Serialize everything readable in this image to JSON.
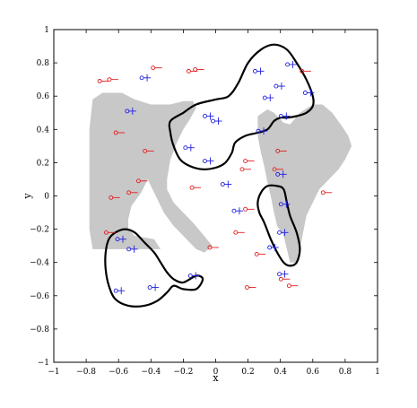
{
  "chart_data": {
    "type": "scatter",
    "title": "",
    "xlabel": "x",
    "ylabel": "y",
    "xlim": [
      -1,
      1
    ],
    "ylim": [
      -1,
      1
    ],
    "xticks": [
      -1,
      -0.8,
      -0.6,
      -0.4,
      -0.2,
      0,
      0.2,
      0.4,
      0.6,
      0.8,
      1
    ],
    "yticks": [
      -1,
      -0.8,
      -0.6,
      -0.4,
      -0.2,
      0,
      0.2,
      0.4,
      0.6,
      0.8,
      1
    ],
    "xtick_labels": [
      "−1",
      "−0.8",
      "−0.6",
      "−0.4",
      "−0.2",
      "0",
      "0.2",
      "0.4",
      "0.6",
      "0.8",
      "1"
    ],
    "ytick_labels": [
      "−1",
      "−0.8",
      "−0.6",
      "−0.4",
      "−0.2",
      "0",
      "0.2",
      "0.4",
      "0.6",
      "0.8",
      "1"
    ],
    "grid": false,
    "colors": {
      "region": "#c8c8c8",
      "boundary": "#000000",
      "class_a": "#e02020",
      "class_b": "#2020e0"
    },
    "region_polygons": [
      [
        [
          -0.76,
          0.58
        ],
        [
          -0.7,
          0.62
        ],
        [
          -0.58,
          0.62
        ],
        [
          -0.5,
          0.58
        ],
        [
          -0.4,
          0.55
        ],
        [
          -0.28,
          0.55
        ],
        [
          -0.2,
          0.57
        ],
        [
          -0.14,
          0.57
        ],
        [
          -0.12,
          0.53
        ],
        [
          -0.16,
          0.46
        ],
        [
          -0.2,
          0.4
        ],
        [
          -0.24,
          0.32
        ],
        [
          -0.28,
          0.22
        ],
        [
          -0.3,
          0.1
        ],
        [
          -0.3,
          0.04
        ],
        [
          -0.26,
          -0.04
        ],
        [
          -0.2,
          -0.1
        ],
        [
          -0.14,
          -0.16
        ],
        [
          -0.08,
          -0.23
        ],
        [
          -0.02,
          -0.3
        ],
        [
          -0.07,
          -0.34
        ],
        [
          -0.12,
          -0.32
        ],
        [
          -0.18,
          -0.26
        ],
        [
          -0.26,
          -0.18
        ],
        [
          -0.32,
          -0.1
        ],
        [
          -0.36,
          -0.02
        ],
        [
          -0.4,
          0.06
        ],
        [
          -0.44,
          0.14
        ],
        [
          -0.5,
          0.2
        ],
        [
          -0.56,
          0.28
        ],
        [
          -0.56,
          0.38
        ],
        [
          -0.52,
          0.41
        ],
        [
          -0.46,
          0.41
        ],
        [
          -0.42,
          0.38
        ],
        [
          -0.38,
          0.36
        ],
        [
          -0.3,
          0.36
        ],
        [
          -0.28,
          0.3
        ],
        [
          -0.3,
          0.22
        ],
        [
          -0.36,
          0.16
        ],
        [
          -0.42,
          0.1
        ],
        [
          -0.46,
          0.02
        ],
        [
          -0.52,
          -0.06
        ],
        [
          -0.54,
          -0.14
        ],
        [
          -0.54,
          -0.2
        ],
        [
          -0.5,
          -0.24
        ],
        [
          -0.38,
          -0.26
        ],
        [
          -0.34,
          -0.32
        ],
        [
          -0.76,
          -0.32
        ],
        [
          -0.78,
          -0.2
        ],
        [
          -0.78,
          0.4
        ]
      ],
      [
        [
          0.26,
          0.48
        ],
        [
          0.32,
          0.52
        ],
        [
          0.36,
          0.5
        ],
        [
          0.42,
          0.44
        ],
        [
          0.46,
          0.43
        ],
        [
          0.52,
          0.5
        ],
        [
          0.6,
          0.55
        ],
        [
          0.66,
          0.55
        ],
        [
          0.72,
          0.5
        ],
        [
          0.78,
          0.42
        ],
        [
          0.82,
          0.36
        ],
        [
          0.84,
          0.3
        ],
        [
          0.8,
          0.22
        ],
        [
          0.76,
          0.16
        ],
        [
          0.7,
          0.1
        ],
        [
          0.64,
          0.04
        ],
        [
          0.6,
          -0.04
        ],
        [
          0.56,
          -0.12
        ],
        [
          0.54,
          -0.22
        ],
        [
          0.52,
          -0.32
        ],
        [
          0.5,
          -0.4
        ],
        [
          0.46,
          -0.4
        ],
        [
          0.44,
          -0.32
        ],
        [
          0.42,
          -0.24
        ],
        [
          0.38,
          -0.18
        ],
        [
          0.36,
          -0.1
        ],
        [
          0.34,
          0
        ],
        [
          0.32,
          0.08
        ],
        [
          0.3,
          0.18
        ],
        [
          0.28,
          0.26
        ],
        [
          0.26,
          0.36
        ]
      ]
    ],
    "boundary_curves": [
      [
        [
          -0.28,
          0.45
        ],
        [
          -0.2,
          0.5
        ],
        [
          -0.12,
          0.55
        ],
        [
          0.0,
          0.58
        ],
        [
          0.08,
          0.6
        ],
        [
          0.14,
          0.68
        ],
        [
          0.2,
          0.8
        ],
        [
          0.28,
          0.88
        ],
        [
          0.36,
          0.91
        ],
        [
          0.44,
          0.88
        ],
        [
          0.5,
          0.8
        ],
        [
          0.56,
          0.7
        ],
        [
          0.6,
          0.6
        ],
        [
          0.6,
          0.54
        ],
        [
          0.56,
          0.5
        ],
        [
          0.5,
          0.48
        ],
        [
          0.44,
          0.47
        ],
        [
          0.4,
          0.47
        ],
        [
          0.36,
          0.45
        ],
        [
          0.32,
          0.4
        ],
        [
          0.26,
          0.38
        ],
        [
          0.18,
          0.36
        ],
        [
          0.12,
          0.32
        ],
        [
          0.1,
          0.26
        ],
        [
          0.06,
          0.2
        ],
        [
          0.0,
          0.17
        ],
        [
          -0.08,
          0.16
        ],
        [
          -0.16,
          0.18
        ],
        [
          -0.22,
          0.22
        ],
        [
          -0.26,
          0.3
        ],
        [
          -0.28,
          0.38
        ]
      ],
      [
        [
          0.26,
          -0.04
        ],
        [
          0.28,
          0.02
        ],
        [
          0.32,
          0.06
        ],
        [
          0.38,
          0.06
        ],
        [
          0.42,
          0.04
        ],
        [
          0.44,
          -0.04
        ],
        [
          0.46,
          -0.12
        ],
        [
          0.5,
          -0.22
        ],
        [
          0.52,
          -0.32
        ],
        [
          0.5,
          -0.4
        ],
        [
          0.46,
          -0.42
        ],
        [
          0.42,
          -0.4
        ],
        [
          0.38,
          -0.34
        ],
        [
          0.34,
          -0.26
        ],
        [
          0.3,
          -0.16
        ],
        [
          0.27,
          -0.1
        ]
      ],
      [
        [
          -0.62,
          -0.22
        ],
        [
          -0.56,
          -0.2
        ],
        [
          -0.5,
          -0.22
        ],
        [
          -0.44,
          -0.28
        ],
        [
          -0.38,
          -0.34
        ],
        [
          -0.34,
          -0.4
        ],
        [
          -0.3,
          -0.46
        ],
        [
          -0.26,
          -0.5
        ],
        [
          -0.2,
          -0.52
        ],
        [
          -0.12,
          -0.48
        ],
        [
          -0.08,
          -0.5
        ],
        [
          -0.12,
          -0.56
        ],
        [
          -0.2,
          -0.56
        ],
        [
          -0.26,
          -0.54
        ],
        [
          -0.3,
          -0.58
        ],
        [
          -0.36,
          -0.63
        ],
        [
          -0.44,
          -0.66
        ],
        [
          -0.54,
          -0.66
        ],
        [
          -0.62,
          -0.62
        ],
        [
          -0.66,
          -0.54
        ],
        [
          -0.68,
          -0.44
        ],
        [
          -0.68,
          -0.34
        ],
        [
          -0.66,
          -0.26
        ]
      ]
    ],
    "series": [
      {
        "marker": "circle",
        "color": "#e02020",
        "points": [
          [
            -0.7,
            0.69
          ],
          [
            -0.64,
            0.7
          ],
          [
            -0.37,
            0.77
          ],
          [
            -0.15,
            0.75
          ],
          [
            -0.11,
            0.76
          ],
          [
            0.55,
            0.75
          ],
          [
            -0.6,
            0.38
          ],
          [
            -0.42,
            0.27
          ],
          [
            -0.46,
            0.09
          ],
          [
            -0.63,
            -0.01
          ],
          [
            -0.52,
            0.02
          ],
          [
            -0.66,
            -0.22
          ],
          [
            -0.13,
            0.05
          ],
          [
            -0.02,
            -0.31
          ],
          [
            0.2,
            0.21
          ],
          [
            0.18,
            0.16
          ],
          [
            0.4,
            0.27
          ],
          [
            0.38,
            0.16
          ],
          [
            0.68,
            0.02
          ],
          [
            0.2,
            -0.08
          ],
          [
            0.14,
            -0.22
          ],
          [
            0.27,
            -0.35
          ],
          [
            0.42,
            -0.5
          ],
          [
            0.21,
            -0.55
          ],
          [
            0.47,
            -0.54
          ]
        ]
      },
      {
        "marker": "circle-plus",
        "color": "#2020e0",
        "points": [
          [
            -0.44,
            0.71
          ],
          [
            0.26,
            0.75
          ],
          [
            0.46,
            0.79
          ],
          [
            -0.53,
            0.51
          ],
          [
            0.39,
            0.66
          ],
          [
            0.32,
            0.59
          ],
          [
            0.57,
            0.62
          ],
          [
            -0.05,
            0.48
          ],
          [
            0.0,
            0.45
          ],
          [
            0.42,
            0.48
          ],
          [
            0.28,
            0.39
          ],
          [
            -0.17,
            0.29
          ],
          [
            -0.05,
            0.21
          ],
          [
            0.4,
            0.13
          ],
          [
            0.06,
            0.07
          ],
          [
            0.42,
            -0.05
          ],
          [
            0.13,
            -0.09
          ],
          [
            0.41,
            -0.22
          ],
          [
            0.35,
            -0.31
          ],
          [
            -0.59,
            -0.26
          ],
          [
            -0.52,
            -0.32
          ],
          [
            0.41,
            -0.47
          ],
          [
            -0.14,
            -0.48
          ],
          [
            -0.39,
            -0.55
          ],
          [
            -0.6,
            -0.57
          ]
        ]
      }
    ]
  }
}
